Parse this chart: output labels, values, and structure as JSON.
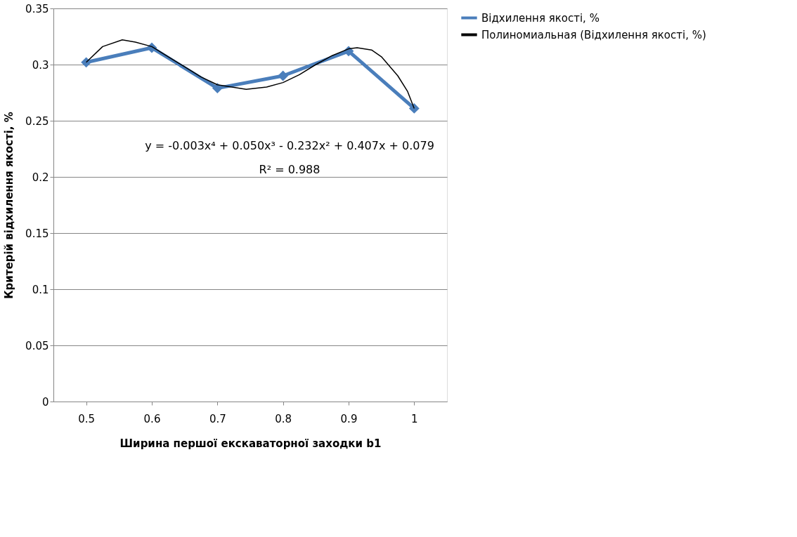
{
  "chart_data": {
    "type": "line",
    "xlabel": "Ширина першої екскаваторної заходки b1",
    "ylabel": "Критерій відхилення якості, %",
    "x": [
      0.5,
      0.6,
      0.7,
      0.8,
      0.9,
      1.0
    ],
    "xlim": [
      0.45,
      1.05
    ],
    "xticks": [
      0.5,
      0.6,
      0.7,
      0.8,
      0.9,
      1
    ],
    "ylim": [
      0,
      0.35
    ],
    "yticks": [
      0,
      0.05,
      0.1,
      0.15,
      0.2,
      0.25,
      0.3,
      0.35
    ],
    "grid": "y",
    "legend": "right",
    "series": [
      {
        "name": "Відхилення якості, %",
        "color": "#4a7ebb",
        "marker": "diamond",
        "values": [
          0.302,
          0.315,
          0.279,
          0.29,
          0.312,
          0.261
        ]
      },
      {
        "name": "Полиномиальная (Відхилення якості, %)",
        "color": "#000000",
        "marker": "none",
        "x": [
          0.5,
          0.525,
          0.555,
          0.575,
          0.6,
          0.625,
          0.65,
          0.675,
          0.7,
          0.744,
          0.775,
          0.8,
          0.825,
          0.85,
          0.875,
          0.9,
          0.913,
          0.935,
          0.95,
          0.975,
          0.99,
          1.0
        ],
        "values": [
          0.302,
          0.316,
          0.322,
          0.32,
          0.316,
          0.307,
          0.298,
          0.289,
          0.282,
          0.278,
          0.28,
          0.284,
          0.291,
          0.3,
          0.308,
          0.314,
          0.315,
          0.313,
          0.307,
          0.29,
          0.276,
          0.261
        ]
      }
    ],
    "annotations": [
      "y = -0.003x⁴ + 0.050x³ - 0.232x² + 0.407x + 0.079",
      "R² = 0.988"
    ]
  }
}
